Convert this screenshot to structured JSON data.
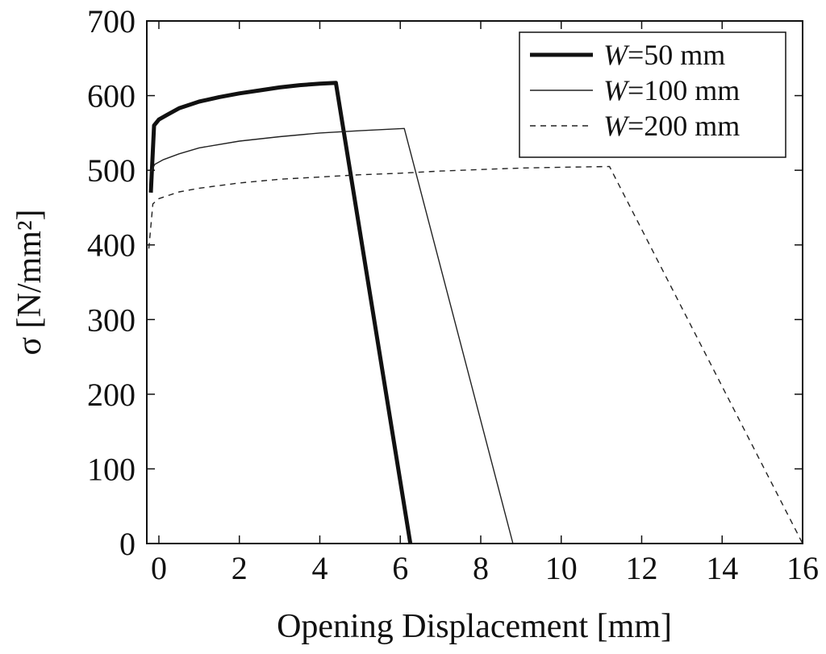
{
  "chart_data": {
    "type": "line",
    "xlabel": "Opening Displacement [mm]",
    "ylabel": "σ [N/mm²]",
    "xlim": [
      -0.3,
      16
    ],
    "ylim": [
      0,
      700
    ],
    "xticks": [
      0,
      2,
      4,
      6,
      8,
      10,
      12,
      14,
      16
    ],
    "yticks": [
      0,
      100,
      200,
      300,
      400,
      500,
      600,
      700
    ],
    "grid": false,
    "legend_position": "top-right",
    "series": [
      {
        "name": "W=50 mm",
        "legend_italic": "W",
        "legend_rest": "=50 mm",
        "style": "thick-solid",
        "points": [
          [
            -0.2,
            470
          ],
          [
            -0.12,
            560
          ],
          [
            0,
            568
          ],
          [
            0.2,
            574
          ],
          [
            0.5,
            583
          ],
          [
            1.0,
            592
          ],
          [
            1.5,
            598
          ],
          [
            2.0,
            603
          ],
          [
            2.5,
            607
          ],
          [
            3.0,
            611
          ],
          [
            3.5,
            614
          ],
          [
            4.0,
            616
          ],
          [
            4.4,
            617
          ],
          [
            6.25,
            0
          ]
        ]
      },
      {
        "name": "W=100 mm",
        "legend_italic": "W",
        "legend_rest": "=100 mm",
        "style": "thin-solid",
        "points": [
          [
            -0.2,
            498
          ],
          [
            -0.1,
            508
          ],
          [
            0.1,
            514
          ],
          [
            0.5,
            522
          ],
          [
            1.0,
            530
          ],
          [
            2.0,
            539
          ],
          [
            3.0,
            545
          ],
          [
            4.0,
            550
          ],
          [
            5.0,
            553
          ],
          [
            6.1,
            556
          ],
          [
            8.8,
            0
          ]
        ]
      },
      {
        "name": "W=200 mm",
        "legend_italic": "W",
        "legend_rest": "=200 mm",
        "style": "dashed",
        "points": [
          [
            -0.25,
            395
          ],
          [
            -0.15,
            455
          ],
          [
            0.0,
            462
          ],
          [
            0.5,
            471
          ],
          [
            1.0,
            476
          ],
          [
            2.0,
            483
          ],
          [
            3.0,
            488
          ],
          [
            4.0,
            491
          ],
          [
            5.0,
            494
          ],
          [
            6.0,
            496
          ],
          [
            7.0,
            499
          ],
          [
            8.0,
            501
          ],
          [
            9.0,
            503
          ],
          [
            10.0,
            504
          ],
          [
            11.2,
            505
          ],
          [
            16.0,
            0
          ]
        ]
      }
    ]
  }
}
